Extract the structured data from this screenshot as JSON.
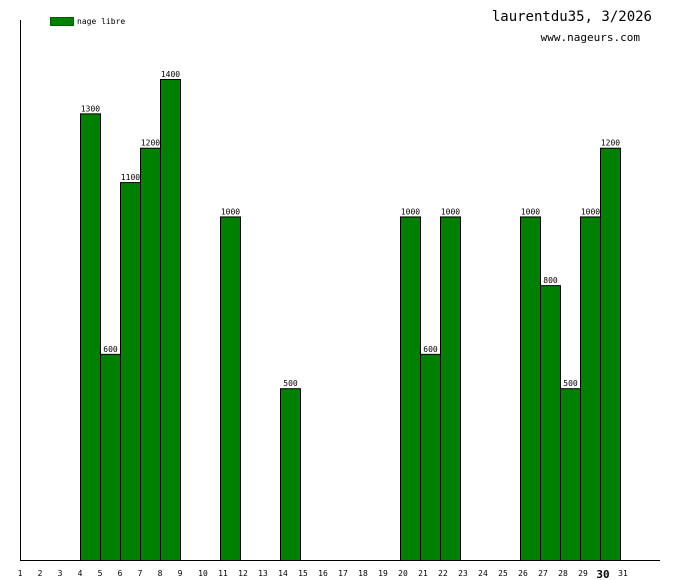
{
  "header": {
    "title": "laurentdu35, 3/2026",
    "site": "www.nageurs.com"
  },
  "legend": {
    "label": "nage libre",
    "color": "#008000"
  },
  "chart_data": {
    "type": "bar",
    "categories": [
      "1",
      "2",
      "3",
      "4",
      "5",
      "6",
      "7",
      "8",
      "9",
      "10",
      "11",
      "12",
      "13",
      "14",
      "15",
      "16",
      "17",
      "18",
      "19",
      "20",
      "21",
      "22",
      "23",
      "24",
      "25",
      "26",
      "27",
      "28",
      "29",
      "30",
      "31"
    ],
    "highlight_category": "30",
    "series": [
      {
        "name": "nage libre",
        "color": "#008000",
        "values": [
          0,
          0,
          0,
          1300,
          600,
          1100,
          1200,
          1400,
          0,
          0,
          1000,
          0,
          0,
          500,
          0,
          0,
          0,
          0,
          0,
          1000,
          600,
          1000,
          0,
          0,
          0,
          1000,
          800,
          500,
          1000,
          1200,
          0
        ]
      }
    ],
    "ylim": [
      0,
      1400
    ],
    "grid": false,
    "legend_position": "top-left"
  }
}
